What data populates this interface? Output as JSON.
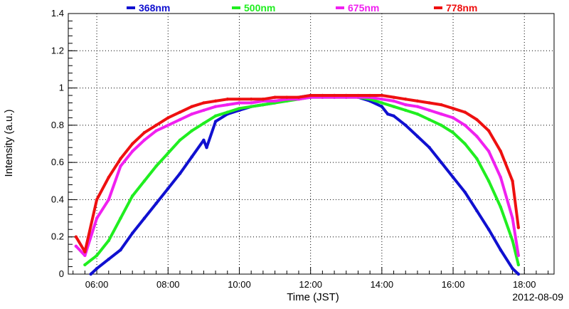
{
  "chart_data": {
    "type": "scatter",
    "xlabel": "Time (JST)",
    "ylabel": "Intensity (a.u.)",
    "date": "2012-08-09",
    "xlim": [
      "05:12",
      "18:50"
    ],
    "ylim": [
      0,
      1.4
    ],
    "x_ticks": [
      "06:00",
      "08:00",
      "10:00",
      "12:00",
      "14:00",
      "16:00",
      "18:00"
    ],
    "y_ticks": [
      "0",
      "0.2",
      "0.4",
      "0.6",
      "0.8",
      "1",
      "1.2",
      "1.4"
    ],
    "grid": true,
    "legend_position": "top",
    "series": [
      {
        "name": "368nm",
        "color": "#1010d0",
        "points": [
          [
            "05:50",
            0.0
          ],
          [
            "06:00",
            0.03
          ],
          [
            "06:20",
            0.08
          ],
          [
            "06:40",
            0.13
          ],
          [
            "07:00",
            0.22
          ],
          [
            "07:20",
            0.3
          ],
          [
            "07:40",
            0.38
          ],
          [
            "08:00",
            0.46
          ],
          [
            "08:20",
            0.54
          ],
          [
            "08:40",
            0.63
          ],
          [
            "09:00",
            0.72
          ],
          [
            "09:05",
            0.68
          ],
          [
            "09:20",
            0.82
          ],
          [
            "09:40",
            0.86
          ],
          [
            "10:00",
            0.88
          ],
          [
            "10:20",
            0.9
          ],
          [
            "10:40",
            0.91
          ],
          [
            "11:00",
            0.92
          ],
          [
            "11:20",
            0.94
          ],
          [
            "11:40",
            0.95
          ],
          [
            "12:00",
            0.96
          ],
          [
            "12:20",
            0.96
          ],
          [
            "12:40",
            0.96
          ],
          [
            "13:00",
            0.96
          ],
          [
            "13:20",
            0.95
          ],
          [
            "13:40",
            0.93
          ],
          [
            "14:00",
            0.9
          ],
          [
            "14:10",
            0.86
          ],
          [
            "14:20",
            0.85
          ],
          [
            "14:40",
            0.8
          ],
          [
            "15:00",
            0.74
          ],
          [
            "15:20",
            0.68
          ],
          [
            "15:40",
            0.6
          ],
          [
            "16:00",
            0.52
          ],
          [
            "16:20",
            0.44
          ],
          [
            "16:40",
            0.34
          ],
          [
            "17:00",
            0.24
          ],
          [
            "17:20",
            0.13
          ],
          [
            "17:40",
            0.03
          ],
          [
            "17:50",
            0.0
          ]
        ]
      },
      {
        "name": "500nm",
        "color": "#20ee20",
        "points": [
          [
            "05:40",
            0.05
          ],
          [
            "06:00",
            0.1
          ],
          [
            "06:20",
            0.18
          ],
          [
            "06:40",
            0.3
          ],
          [
            "07:00",
            0.42
          ],
          [
            "07:20",
            0.5
          ],
          [
            "07:40",
            0.58
          ],
          [
            "08:00",
            0.65
          ],
          [
            "08:20",
            0.72
          ],
          [
            "08:40",
            0.77
          ],
          [
            "09:00",
            0.81
          ],
          [
            "09:20",
            0.85
          ],
          [
            "09:40",
            0.87
          ],
          [
            "10:00",
            0.89
          ],
          [
            "10:20",
            0.9
          ],
          [
            "10:40",
            0.91
          ],
          [
            "11:00",
            0.92
          ],
          [
            "11:20",
            0.93
          ],
          [
            "11:40",
            0.94
          ],
          [
            "12:00",
            0.95
          ],
          [
            "12:20",
            0.95
          ],
          [
            "12:40",
            0.95
          ],
          [
            "13:00",
            0.95
          ],
          [
            "13:20",
            0.95
          ],
          [
            "13:40",
            0.94
          ],
          [
            "14:00",
            0.92
          ],
          [
            "14:20",
            0.9
          ],
          [
            "14:40",
            0.88
          ],
          [
            "15:00",
            0.86
          ],
          [
            "15:20",
            0.83
          ],
          [
            "15:40",
            0.8
          ],
          [
            "16:00",
            0.76
          ],
          [
            "16:20",
            0.7
          ],
          [
            "16:40",
            0.62
          ],
          [
            "17:00",
            0.5
          ],
          [
            "17:20",
            0.36
          ],
          [
            "17:40",
            0.18
          ],
          [
            "17:50",
            0.05
          ]
        ]
      },
      {
        "name": "675nm",
        "color": "#f020f0",
        "points": [
          [
            "05:25",
            0.15
          ],
          [
            "05:40",
            0.1
          ],
          [
            "06:00",
            0.3
          ],
          [
            "06:20",
            0.4
          ],
          [
            "06:40",
            0.58
          ],
          [
            "07:00",
            0.66
          ],
          [
            "07:20",
            0.72
          ],
          [
            "07:40",
            0.77
          ],
          [
            "08:00",
            0.8
          ],
          [
            "08:20",
            0.83
          ],
          [
            "08:40",
            0.86
          ],
          [
            "09:00",
            0.88
          ],
          [
            "09:20",
            0.9
          ],
          [
            "09:40",
            0.91
          ],
          [
            "10:00",
            0.92
          ],
          [
            "10:20",
            0.92
          ],
          [
            "10:40",
            0.93
          ],
          [
            "11:00",
            0.93
          ],
          [
            "11:20",
            0.94
          ],
          [
            "11:40",
            0.94
          ],
          [
            "12:00",
            0.95
          ],
          [
            "12:20",
            0.95
          ],
          [
            "12:40",
            0.95
          ],
          [
            "13:00",
            0.95
          ],
          [
            "13:20",
            0.95
          ],
          [
            "13:40",
            0.95
          ],
          [
            "14:00",
            0.94
          ],
          [
            "14:20",
            0.93
          ],
          [
            "14:40",
            0.91
          ],
          [
            "15:00",
            0.9
          ],
          [
            "15:20",
            0.88
          ],
          [
            "15:40",
            0.86
          ],
          [
            "16:00",
            0.84
          ],
          [
            "16:20",
            0.8
          ],
          [
            "16:40",
            0.74
          ],
          [
            "17:00",
            0.66
          ],
          [
            "17:20",
            0.52
          ],
          [
            "17:40",
            0.3
          ],
          [
            "17:50",
            0.1
          ]
        ]
      },
      {
        "name": "778nm",
        "color": "#ee1010",
        "points": [
          [
            "05:25",
            0.2
          ],
          [
            "05:40",
            0.12
          ],
          [
            "06:00",
            0.4
          ],
          [
            "06:20",
            0.52
          ],
          [
            "06:40",
            0.62
          ],
          [
            "07:00",
            0.7
          ],
          [
            "07:20",
            0.76
          ],
          [
            "07:40",
            0.8
          ],
          [
            "08:00",
            0.84
          ],
          [
            "08:20",
            0.87
          ],
          [
            "08:40",
            0.9
          ],
          [
            "09:00",
            0.92
          ],
          [
            "09:20",
            0.93
          ],
          [
            "09:40",
            0.94
          ],
          [
            "10:00",
            0.94
          ],
          [
            "10:20",
            0.94
          ],
          [
            "10:40",
            0.94
          ],
          [
            "11:00",
            0.95
          ],
          [
            "11:20",
            0.95
          ],
          [
            "11:40",
            0.95
          ],
          [
            "12:00",
            0.96
          ],
          [
            "12:20",
            0.96
          ],
          [
            "12:40",
            0.96
          ],
          [
            "13:00",
            0.96
          ],
          [
            "13:20",
            0.96
          ],
          [
            "13:40",
            0.96
          ],
          [
            "14:00",
            0.96
          ],
          [
            "14:20",
            0.95
          ],
          [
            "14:40",
            0.94
          ],
          [
            "15:00",
            0.93
          ],
          [
            "15:20",
            0.92
          ],
          [
            "15:40",
            0.91
          ],
          [
            "16:00",
            0.89
          ],
          [
            "16:20",
            0.87
          ],
          [
            "16:40",
            0.83
          ],
          [
            "17:00",
            0.77
          ],
          [
            "17:20",
            0.66
          ],
          [
            "17:40",
            0.5
          ],
          [
            "17:50",
            0.25
          ]
        ]
      }
    ]
  }
}
